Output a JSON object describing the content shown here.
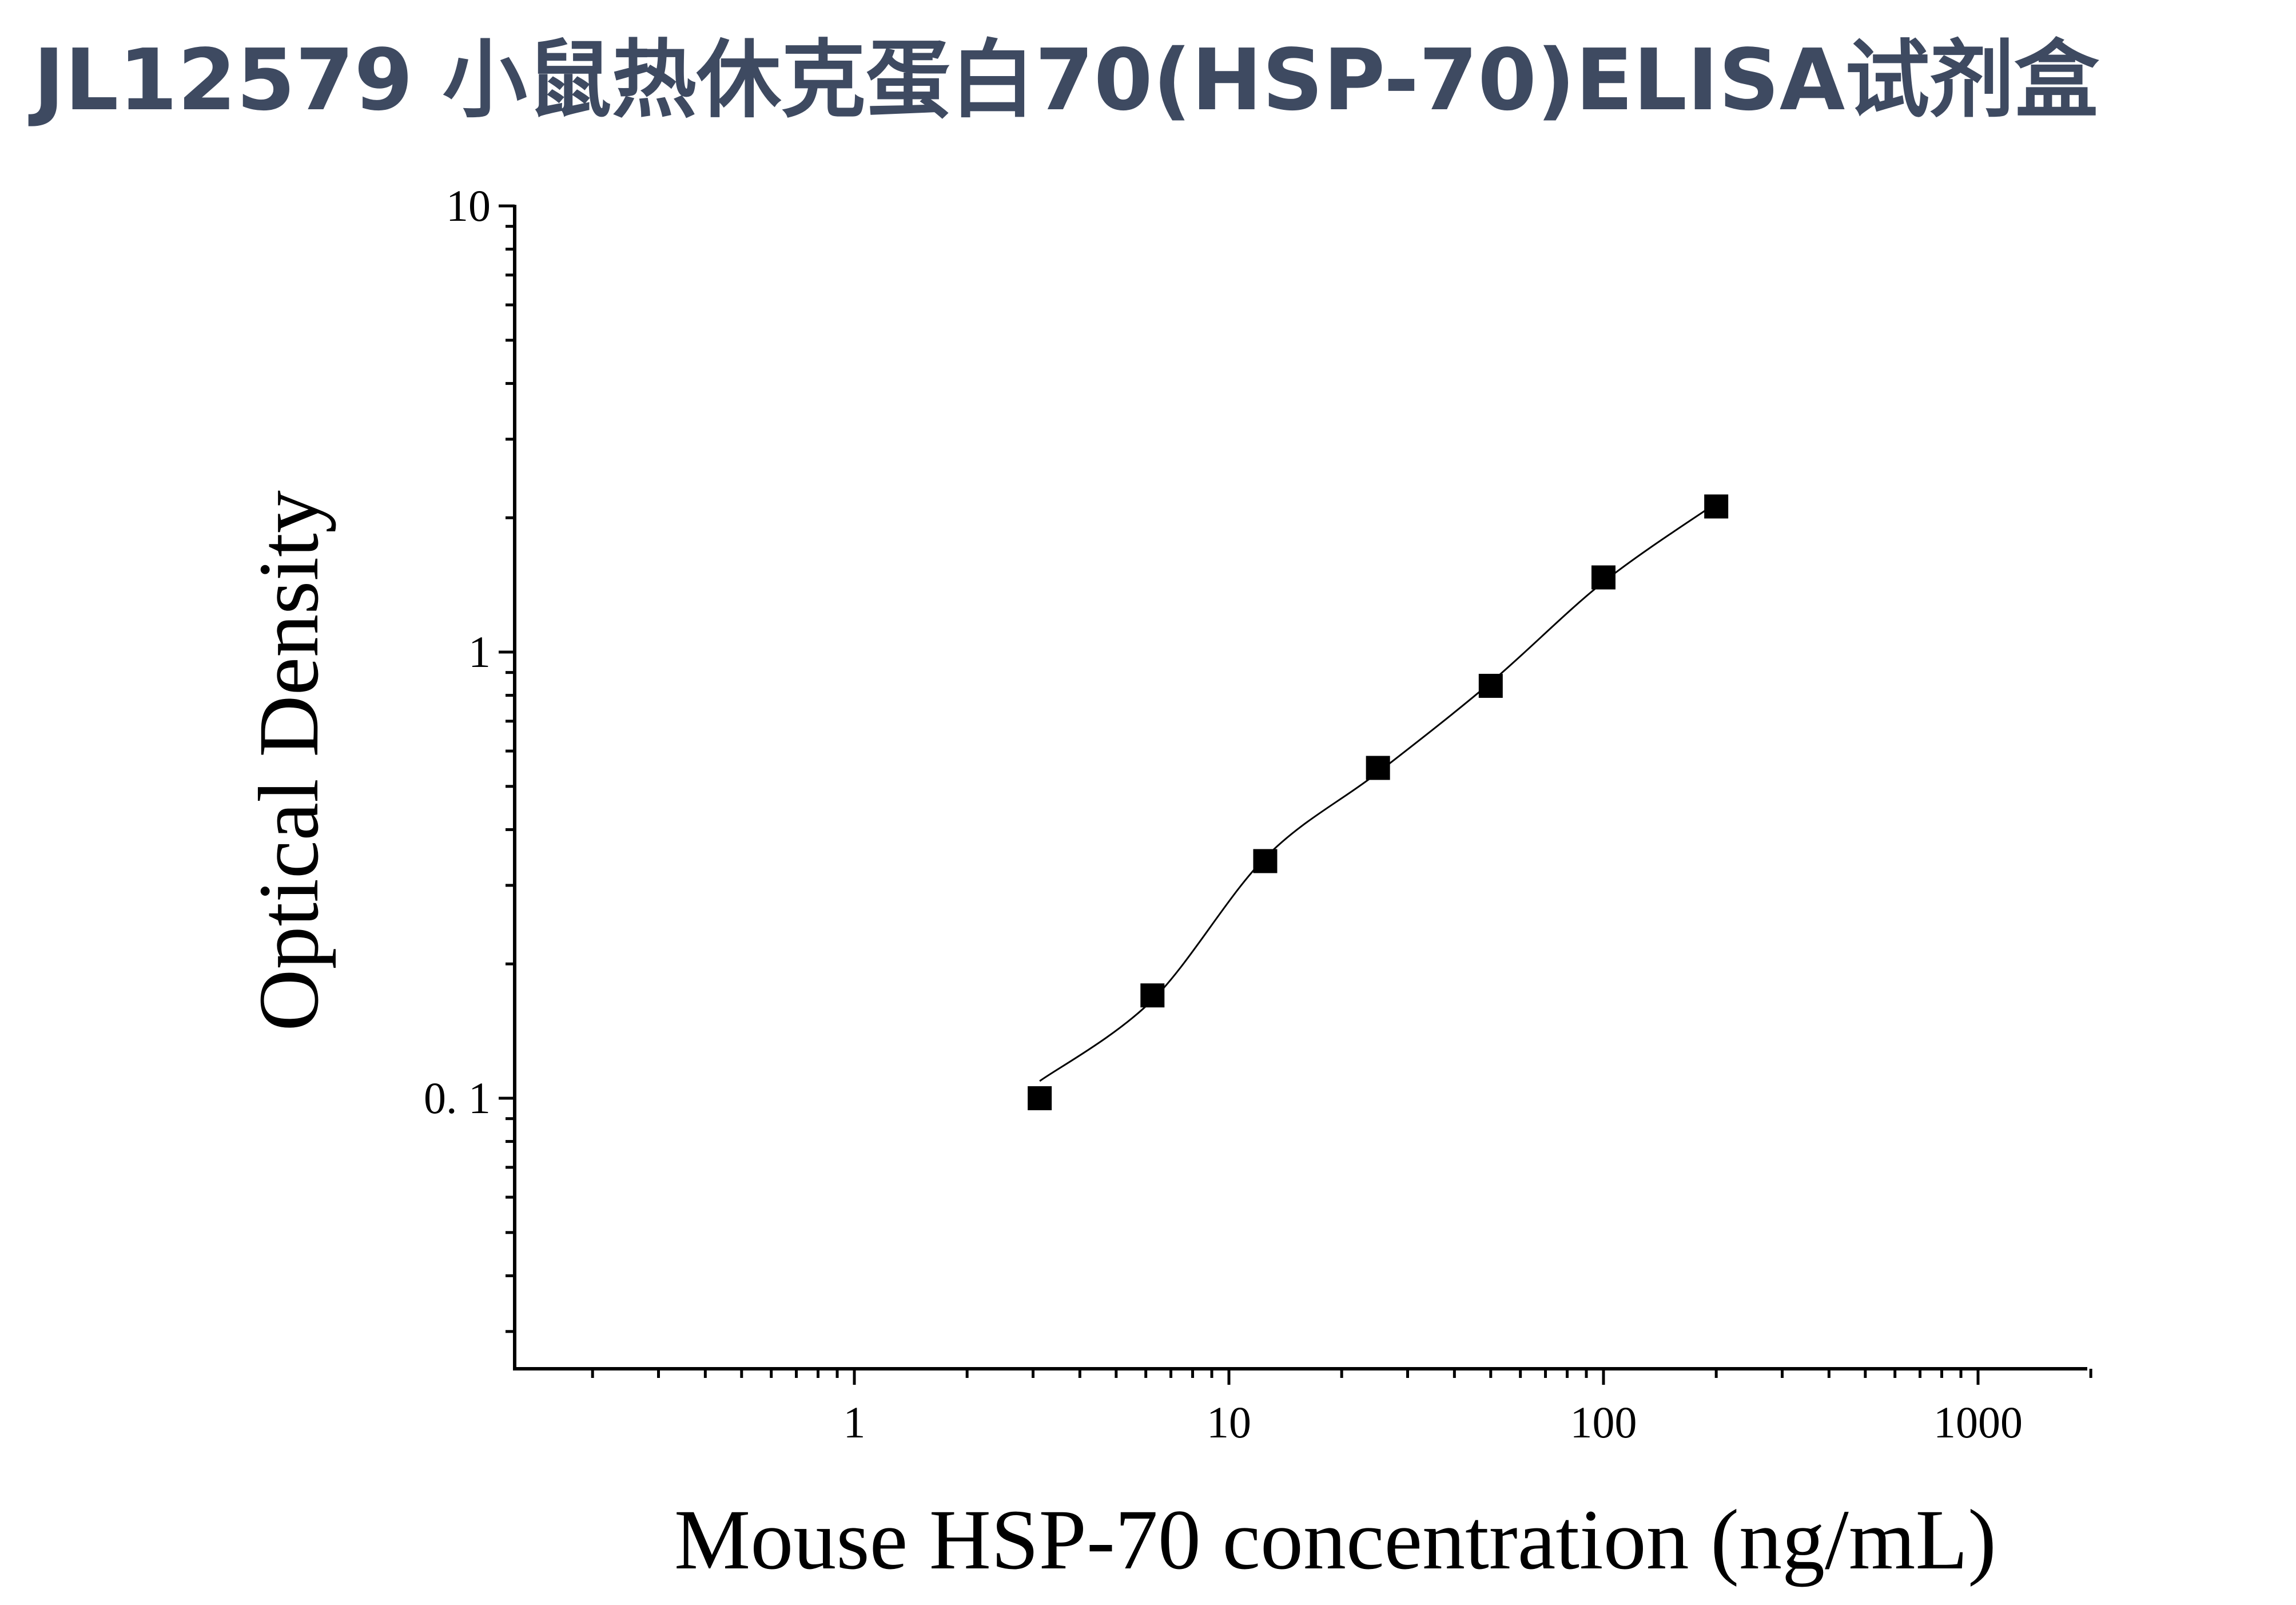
{
  "header": {
    "title": "JL12579 小鼠热休克蛋白70(HSP-70)ELISA试剂盒"
  },
  "chart_data": {
    "type": "scatter",
    "title": "JL12579 小鼠热休克蛋白70(HSP-70)ELISA试剂盒",
    "xlabel": "Mouse HSP-70 concentration (ng/mL)",
    "ylabel": "Optical Density",
    "x_scale": "log",
    "y_scale": "log",
    "xlim": [
      0.12,
      2000
    ],
    "ylim": [
      0.025,
      10
    ],
    "x_ticks": [
      1,
      10,
      100,
      1000
    ],
    "x_tick_labels": [
      "1",
      "10",
      "100",
      "1000"
    ],
    "y_ticks": [
      0.1,
      1,
      10
    ],
    "y_tick_labels": [
      "0. 1",
      "1",
      "10"
    ],
    "grid": false,
    "series": [
      {
        "marker": "square",
        "color": "#000000",
        "fit_line": true,
        "points": [
          {
            "x": 3.125,
            "y": 0.1
          },
          {
            "x": 6.25,
            "y": 0.17
          },
          {
            "x": 12.5,
            "y": 0.34
          },
          {
            "x": 25,
            "y": 0.55
          },
          {
            "x": 50,
            "y": 0.84
          },
          {
            "x": 100,
            "y": 1.47
          },
          {
            "x": 200,
            "y": 2.12
          }
        ]
      }
    ]
  }
}
